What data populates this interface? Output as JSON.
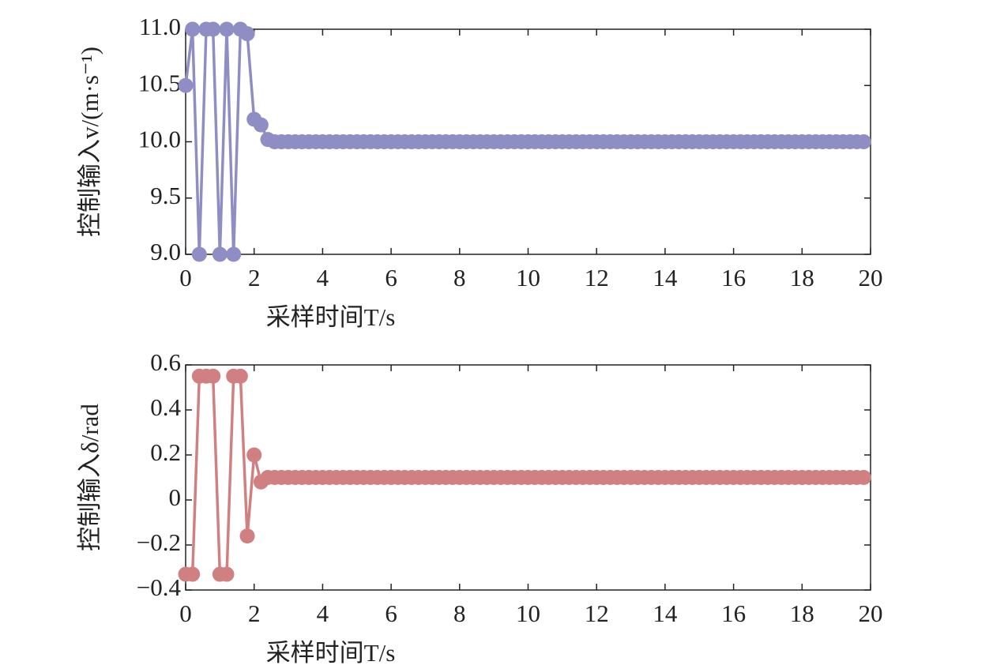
{
  "chart_data": [
    {
      "type": "line",
      "y_label": "控制输入v/(m·s⁻¹)",
      "x_label": "采样时间T/s",
      "x": [
        0,
        0.2,
        0.4,
        0.6,
        0.8,
        1,
        1.2,
        1.4,
        1.6,
        1.8,
        2,
        2.2,
        2.4,
        2.6,
        2.8,
        3,
        3.2,
        3.4,
        3.6,
        3.8,
        4,
        4.2,
        4.4,
        4.6,
        4.8,
        5,
        5.2,
        5.4,
        5.6,
        5.8,
        6,
        6.2,
        6.4,
        6.6,
        6.8,
        7,
        7.2,
        7.4,
        7.6,
        7.8,
        8,
        8.2,
        8.4,
        8.6,
        8.8,
        9,
        9.2,
        9.4,
        9.6,
        9.8,
        10,
        10.2,
        10.4,
        10.6,
        10.8,
        11,
        11.2,
        11.4,
        11.6,
        11.8,
        12,
        12.2,
        12.4,
        12.6,
        12.8,
        13,
        13.2,
        13.4,
        13.6,
        13.8,
        14,
        14.2,
        14.4,
        14.6,
        14.8,
        15,
        15.2,
        15.4,
        15.6,
        15.8,
        16,
        16.2,
        16.4,
        16.6,
        16.8,
        17,
        17.2,
        17.4,
        17.6,
        17.8,
        18,
        18.2,
        18.4,
        18.6,
        18.8,
        19,
        19.2,
        19.4,
        19.6,
        19.8
      ],
      "series": [
        {
          "color": "#8e8ec4",
          "values": [
            10.5,
            11,
            9,
            11,
            11,
            9,
            11,
            9,
            11,
            10.96,
            10.2,
            10.15,
            10.02,
            10,
            10,
            10,
            10,
            10,
            10,
            10,
            10,
            10,
            10,
            10,
            10,
            10,
            10,
            10,
            10,
            10,
            10,
            10,
            10,
            10,
            10,
            10,
            10,
            10,
            10,
            10,
            10,
            10,
            10,
            10,
            10,
            10,
            10,
            10,
            10,
            10,
            10,
            10,
            10,
            10,
            10,
            10,
            10,
            10,
            10,
            10,
            10,
            10,
            10,
            10,
            10,
            10,
            10,
            10,
            10,
            10,
            10,
            10,
            10,
            10,
            10,
            10,
            10,
            10,
            10,
            10,
            10,
            10,
            10,
            10,
            10,
            10,
            10,
            10,
            10,
            10,
            10,
            10,
            10,
            10,
            10,
            10,
            10,
            10,
            10,
            10
          ]
        }
      ],
      "xlim": [
        0,
        20
      ],
      "xticks": [
        0,
        2,
        4,
        6,
        8,
        10,
        12,
        14,
        16,
        18,
        20
      ],
      "ylim": [
        9,
        11
      ],
      "yticks": [
        {
          "value": 9,
          "label": "9.0"
        },
        9.5,
        {
          "value": 10,
          "label": "10.0"
        },
        10.5,
        {
          "value": 11,
          "label": "11.0"
        }
      ]
    },
    {
      "type": "line",
      "y_label": "控制输入δ/rad",
      "x_label": "采样时间T/s",
      "x": [
        0,
        0.2,
        0.4,
        0.6,
        0.8,
        1,
        1.2,
        1.4,
        1.6,
        1.8,
        2,
        2.2,
        2.4,
        2.6,
        2.8,
        3,
        3.2,
        3.4,
        3.6,
        3.8,
        4,
        4.2,
        4.4,
        4.6,
        4.8,
        5,
        5.2,
        5.4,
        5.6,
        5.8,
        6,
        6.2,
        6.4,
        6.6,
        6.8,
        7,
        7.2,
        7.4,
        7.6,
        7.8,
        8,
        8.2,
        8.4,
        8.6,
        8.8,
        9,
        9.2,
        9.4,
        9.6,
        9.8,
        10,
        10.2,
        10.4,
        10.6,
        10.8,
        11,
        11.2,
        11.4,
        11.6,
        11.8,
        12,
        12.2,
        12.4,
        12.6,
        12.8,
        13,
        13.2,
        13.4,
        13.6,
        13.8,
        14,
        14.2,
        14.4,
        14.6,
        14.8,
        15,
        15.2,
        15.4,
        15.6,
        15.8,
        16,
        16.2,
        16.4,
        16.6,
        16.8,
        17,
        17.2,
        17.4,
        17.6,
        17.8,
        18,
        18.2,
        18.4,
        18.6,
        18.8,
        19,
        19.2,
        19.4,
        19.6,
        19.8
      ],
      "series": [
        {
          "color": "#d08080",
          "values": [
            -0.33,
            -0.33,
            0.55,
            0.55,
            0.55,
            -0.33,
            -0.33,
            0.55,
            0.55,
            -0.16,
            0.2,
            0.08,
            0.1,
            0.1,
            0.1,
            0.1,
            0.1,
            0.1,
            0.1,
            0.1,
            0.1,
            0.1,
            0.1,
            0.1,
            0.1,
            0.1,
            0.1,
            0.1,
            0.1,
            0.1,
            0.1,
            0.1,
            0.1,
            0.1,
            0.1,
            0.1,
            0.1,
            0.1,
            0.1,
            0.1,
            0.1,
            0.1,
            0.1,
            0.1,
            0.1,
            0.1,
            0.1,
            0.1,
            0.1,
            0.1,
            0.1,
            0.1,
            0.1,
            0.1,
            0.1,
            0.1,
            0.1,
            0.1,
            0.1,
            0.1,
            0.1,
            0.1,
            0.1,
            0.1,
            0.1,
            0.1,
            0.1,
            0.1,
            0.1,
            0.1,
            0.1,
            0.1,
            0.1,
            0.1,
            0.1,
            0.1,
            0.1,
            0.1,
            0.1,
            0.1,
            0.1,
            0.1,
            0.1,
            0.1,
            0.1,
            0.1,
            0.1,
            0.1,
            0.1,
            0.1,
            0.1,
            0.1,
            0.1,
            0.1,
            0.1,
            0.1,
            0.1,
            0.1,
            0.1,
            0.1
          ]
        }
      ],
      "xlim": [
        0,
        20
      ],
      "xticks": [
        0,
        2,
        4,
        6,
        8,
        10,
        12,
        14,
        16,
        18,
        20
      ],
      "ylim": [
        -0.4,
        0.6
      ],
      "yticks": [
        {
          "value": -0.4,
          "label": "−0.4"
        },
        {
          "value": -0.2,
          "label": "−0.2"
        },
        0,
        0.2,
        0.4,
        0.6
      ]
    }
  ]
}
